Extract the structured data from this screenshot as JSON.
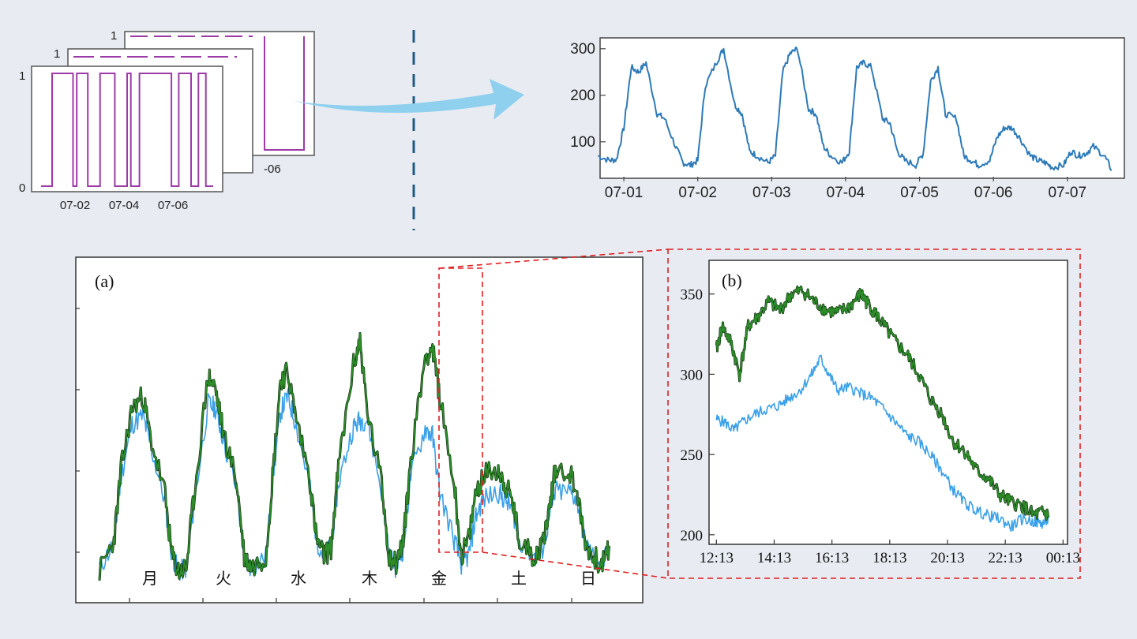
{
  "colors": {
    "background": "#e8ecf2",
    "binary_trace": "#9c3aa8",
    "load_trace": "#2e7ab8",
    "arrow": "#8fd0ef",
    "divider": "#1f5a80",
    "green_trace": "#2e8c2a",
    "green_edge": "#0b2a0b",
    "light_blue_trace": "#3aa0e8",
    "zoom_box": "#e02020"
  },
  "chart_data": [
    {
      "id": "binary-states",
      "type": "line",
      "y_tick_labels": [
        "0",
        "1"
      ],
      "x_tick_labels": [
        "07-02",
        "07-04",
        "07-06"
      ],
      "back_card_label": "-06",
      "ylim": [
        0,
        1
      ],
      "series": [
        {
          "x": [
            0,
            0.45,
            0.45,
            1.3,
            1.3,
            1.45,
            1.45,
            1.9,
            1.9,
            2.4,
            2.4,
            3.0,
            3.0,
            3.5,
            3.5,
            3.65,
            3.65,
            4.0,
            4.0,
            5.3,
            5.3,
            5.6,
            5.6,
            6.1,
            6.1,
            6.4,
            6.4,
            6.7,
            6.7,
            7.0
          ],
          "y": [
            0,
            0,
            1,
            1,
            0,
            0,
            1,
            1,
            0,
            0,
            1,
            1,
            0,
            0,
            1,
            1,
            0,
            0,
            1,
            1,
            0,
            0,
            1,
            1,
            0,
            0,
            1,
            1,
            0,
            0
          ]
        }
      ]
    },
    {
      "id": "weekly-load",
      "type": "line",
      "x_tick_labels": [
        "07-01",
        "07-02",
        "07-03",
        "07-04",
        "07-05",
        "07-06",
        "07-07"
      ],
      "y_ticks": [
        100,
        200,
        300
      ],
      "ylim": [
        25,
        320
      ],
      "xlim": [
        -0.3,
        6.75
      ],
      "series": [
        {
          "x": [
            -0.35,
            -0.2,
            -0.1,
            0.0,
            0.1,
            0.2,
            0.3,
            0.45,
            0.55,
            0.7,
            0.8,
            0.9,
            1.0,
            1.1,
            1.25,
            1.35,
            1.5,
            1.6,
            1.7,
            1.8,
            1.95,
            2.05,
            2.15,
            2.25,
            2.35,
            2.5,
            2.6,
            2.7,
            2.8,
            2.95,
            3.05,
            3.15,
            3.25,
            3.35,
            3.5,
            3.6,
            3.7,
            3.8,
            3.95,
            4.05,
            4.15,
            4.25,
            4.35,
            4.5,
            4.6,
            4.7,
            4.8,
            4.95,
            5.05,
            5.15,
            5.25,
            5.35,
            5.5,
            5.6,
            5.7,
            5.8,
            5.95,
            6.05,
            6.15,
            6.25,
            6.35,
            6.5,
            6.6
          ],
          "y": [
            70,
            60,
            62,
            130,
            260,
            250,
            270,
            160,
            150,
            90,
            55,
            50,
            60,
            220,
            270,
            300,
            180,
            160,
            80,
            70,
            55,
            70,
            250,
            290,
            300,
            170,
            160,
            90,
            70,
            55,
            80,
            260,
            270,
            260,
            150,
            140,
            80,
            60,
            50,
            75,
            230,
            260,
            160,
            150,
            70,
            60,
            50,
            60,
            110,
            130,
            130,
            110,
            70,
            60,
            55,
            45,
            50,
            80,
            70,
            75,
            90,
            70,
            40
          ]
        }
      ]
    },
    {
      "id": "a",
      "type": "line",
      "title": "(a)",
      "x_tick_labels": [
        "月",
        "火",
        "水",
        "木",
        "金",
        "土",
        "日"
      ],
      "ylim": [
        0,
        400
      ],
      "xlim": [
        0,
        7.2
      ],
      "series": [
        {
          "x": [
            0,
            0.2,
            0.3,
            0.45,
            0.6,
            0.7,
            0.9,
            1.0,
            1.1,
            1.2,
            1.3,
            1.5,
            1.6,
            1.7,
            1.9,
            2.0,
            2.1,
            2.3,
            2.4,
            2.5,
            2.6,
            2.7,
            2.9,
            3.0,
            3.1,
            3.2,
            3.3,
            3.5,
            3.6,
            3.7,
            3.9,
            4.0,
            4.1,
            4.2,
            4.3,
            4.5,
            4.6,
            4.7,
            4.9,
            5.0,
            5.1,
            5.2,
            5.3,
            5.5,
            5.6,
            5.7,
            5.8,
            6.0,
            6.1,
            6.2,
            6.3,
            6.5,
            6.6,
            6.7,
            6.8,
            6.95,
            7.05
          ],
          "y": [
            20,
            60,
            150,
            225,
            240,
            190,
            120,
            40,
            20,
            25,
            110,
            265,
            250,
            200,
            130,
            40,
            25,
            40,
            150,
            260,
            270,
            220,
            140,
            60,
            40,
            50,
            150,
            275,
            310,
            220,
            130,
            40,
            30,
            60,
            160,
            290,
            300,
            240,
            130,
            40,
            60,
            120,
            140,
            150,
            130,
            110,
            60,
            40,
            50,
            90,
            150,
            145,
            120,
            60,
            40,
            30,
            50
          ]
        },
        {
          "x": [
            0,
            0.2,
            0.3,
            0.45,
            0.6,
            0.7,
            0.9,
            1.0,
            1.1,
            1.2,
            1.3,
            1.5,
            1.6,
            1.7,
            1.9,
            2.0,
            2.1,
            2.3,
            2.4,
            2.5,
            2.6,
            2.7,
            2.9,
            3.0,
            3.1,
            3.2,
            3.3,
            3.5,
            3.6,
            3.7,
            3.9,
            4.0,
            4.1,
            4.2,
            4.3,
            4.5,
            4.6,
            4.7,
            4.9,
            5.0,
            5.1,
            5.2,
            5.3,
            5.5,
            5.6,
            5.7,
            5.8,
            6.0,
            6.1,
            6.2,
            6.3,
            6.5,
            6.6,
            6.7,
            6.8,
            6.95,
            7.05
          ],
          "y": [
            25,
            55,
            140,
            205,
            215,
            180,
            110,
            40,
            20,
            25,
            100,
            230,
            225,
            190,
            120,
            35,
            25,
            40,
            140,
            220,
            240,
            210,
            130,
            60,
            40,
            50,
            130,
            200,
            210,
            210,
            120,
            40,
            25,
            50,
            140,
            200,
            190,
            120,
            60,
            30,
            40,
            90,
            110,
            120,
            110,
            100,
            60,
            40,
            40,
            80,
            120,
            120,
            110,
            60,
            40,
            30,
            50
          ]
        }
      ]
    },
    {
      "id": "b",
      "type": "line",
      "title": "(b)",
      "x_tick_labels": [
        "12:13",
        "14:13",
        "16:13",
        "18:13",
        "20:13",
        "22:13",
        "00:13"
      ],
      "y_ticks": [
        200,
        250,
        300,
        350
      ],
      "ylim": [
        195,
        370
      ],
      "xlim": [
        12.0,
        24.3
      ],
      "series": [
        {
          "x": [
            12.2,
            12.4,
            12.7,
            13.0,
            13.3,
            13.6,
            14.0,
            14.4,
            14.8,
            15.2,
            15.6,
            16.0,
            16.4,
            16.8,
            17.2,
            17.4,
            17.7,
            18.0,
            18.4,
            18.8,
            19.2,
            19.6,
            20.0,
            20.4,
            20.8,
            21.2,
            21.6,
            22.0,
            22.4,
            22.8,
            23.2,
            23.5,
            23.7
          ],
          "y": [
            315,
            330,
            320,
            300,
            330,
            335,
            345,
            340,
            350,
            352,
            345,
            340,
            338,
            342,
            350,
            345,
            338,
            330,
            320,
            312,
            300,
            285,
            275,
            258,
            252,
            240,
            235,
            225,
            220,
            218,
            212,
            214,
            212
          ]
        },
        {
          "x": [
            12.2,
            12.5,
            12.8,
            13.1,
            13.5,
            13.9,
            14.3,
            14.7,
            15.1,
            15.5,
            15.8,
            16.1,
            16.4,
            16.8,
            17.2,
            17.6,
            18.0,
            18.4,
            18.8,
            19.2,
            19.6,
            20.0,
            20.4,
            20.8,
            21.2,
            21.6,
            22.0,
            22.4,
            22.8,
            23.2,
            23.5,
            23.7
          ],
          "y": [
            272,
            270,
            265,
            270,
            275,
            278,
            280,
            285,
            290,
            300,
            310,
            300,
            290,
            292,
            288,
            285,
            278,
            270,
            262,
            258,
            250,
            240,
            228,
            220,
            215,
            212,
            210,
            205,
            210,
            208,
            207,
            210
          ]
        }
      ]
    }
  ]
}
